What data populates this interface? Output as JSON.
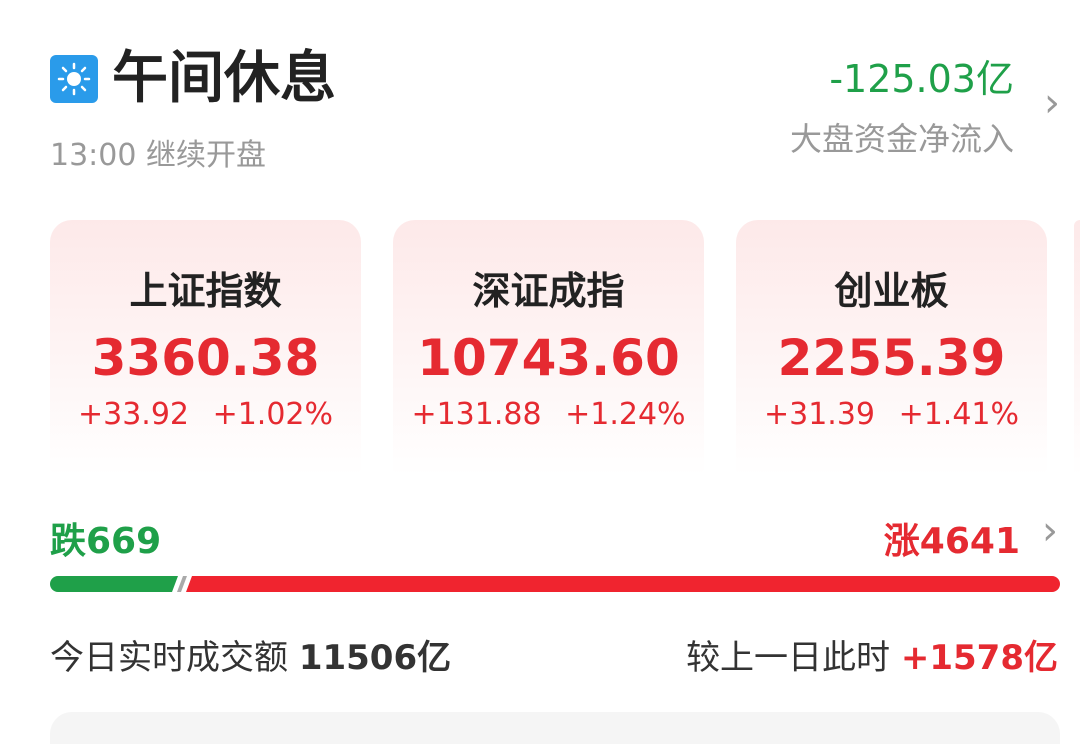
{
  "header": {
    "icon": "sun-icon",
    "title": "午间休息",
    "subtitle": "13:00 继续开盘",
    "net_flow": "-125.03亿",
    "net_flow_label": "大盘资金净流入"
  },
  "indices": [
    {
      "name": "上证指数",
      "value": "3360.38",
      "change": "+33.92",
      "pct": "+1.02%"
    },
    {
      "name": "深证成指",
      "value": "10743.60",
      "change": "+131.88",
      "pct": "+1.24%"
    },
    {
      "name": "创业板",
      "value": "2255.39",
      "change": "+31.39",
      "pct": "+1.41%"
    }
  ],
  "breadth": {
    "fall": "跌669",
    "rise": "涨4641",
    "fall_count": 669,
    "rise_count": 4641
  },
  "turnover": {
    "label": "今日实时成交额",
    "value": "11506亿",
    "compare_label": "较上一日此时",
    "compare_value": "+1578亿"
  },
  "colors": {
    "up": "#e52a31",
    "down": "#1fa049"
  }
}
